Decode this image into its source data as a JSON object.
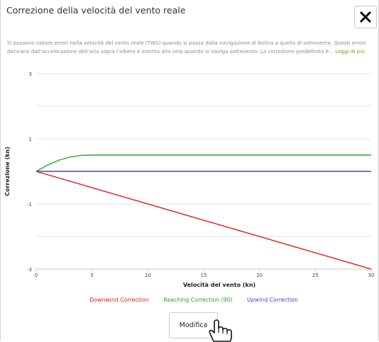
{
  "dialog": {
    "title": "Correzione della velocità del vento reale",
    "description": "Si possono notare errori nella velocità del vento reale (TWS) quando si passa dalla navigazione di bolina a quella di sottovento. Questi errori derivano dall'accelerazione dell'aria sopra l'albero e intorno alla vela quando si naviga sottovento. La correzione predefinita è...",
    "read_more": "Leggi di più",
    "close_icon": "close-icon",
    "modify_button": "Modifica"
  },
  "colors": {
    "downwind": "#e02020",
    "reaching": "#22aa22",
    "upwind": "#4040e8",
    "read_more": "#7a9a1a"
  },
  "chart_data": {
    "type": "line",
    "xlabel": "Velocità del vento (kn)",
    "ylabel": "Correzione (kn)",
    "xlim": [
      0,
      30
    ],
    "ylim": [
      -3,
      3
    ],
    "x_ticks": [
      "0",
      "5",
      "10",
      "15",
      "20",
      "25",
      "30"
    ],
    "y_ticks": [
      "-3",
      "-1",
      "1",
      "3"
    ],
    "grid": true,
    "legend": "bottom",
    "series": [
      {
        "name": "Downwind Correction",
        "color": "#e02020",
        "x": [
          0,
          30
        ],
        "y": [
          0,
          -3
        ]
      },
      {
        "name": "Reaching Correction (90)",
        "color": "#22aa22",
        "x": [
          0,
          1,
          2,
          3,
          4,
          5,
          30
        ],
        "y": [
          0,
          0.19,
          0.34,
          0.44,
          0.49,
          0.5,
          0.5
        ]
      },
      {
        "name": "Upwind Correction",
        "color": "#4040e8",
        "x": [
          0,
          30
        ],
        "y": [
          0,
          0
        ]
      }
    ]
  }
}
